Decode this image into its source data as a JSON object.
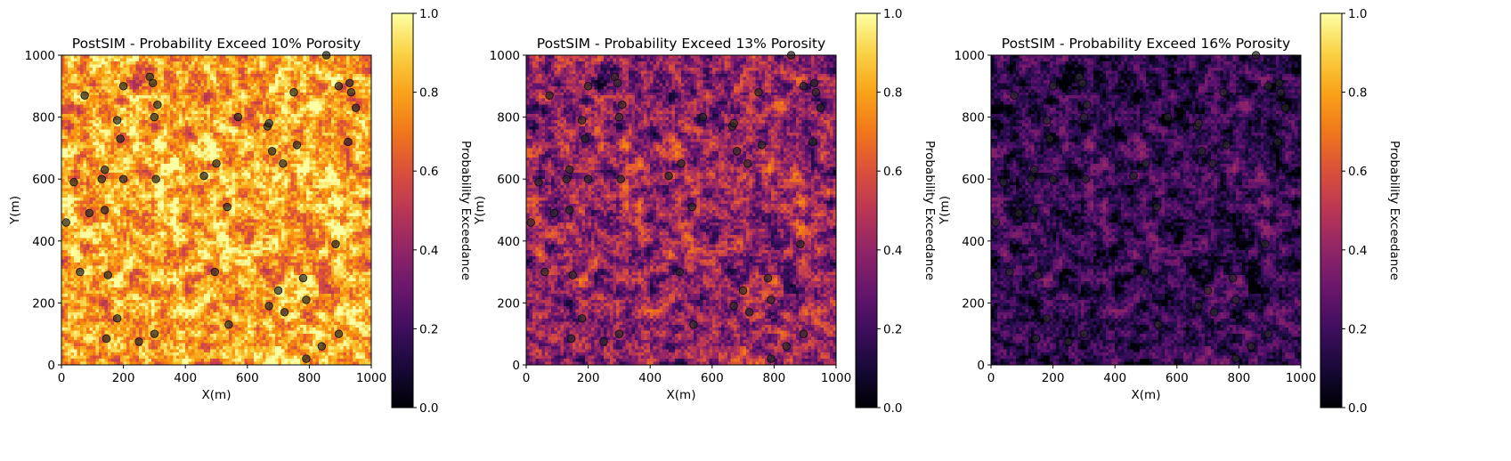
{
  "chart_data": [
    {
      "type": "heatmap",
      "title": "PostSIM - Probability Exceed 10% Porosity",
      "xlabel": "X(m)",
      "ylabel": "Y(m)",
      "xlim": [
        0,
        1000
      ],
      "ylim": [
        0,
        1000
      ],
      "xticks": [
        "0",
        "200",
        "400",
        "600",
        "800",
        "1000"
      ],
      "yticks": [
        "0",
        "200",
        "400",
        "600",
        "800",
        "1000"
      ],
      "grid_cells": 100,
      "mean_probability": 0.8,
      "variation": 0.19,
      "colorbar": {
        "label": "Probability Exceedance",
        "min": 0.0,
        "max": 1.0,
        "ticks": [
          "0.0",
          "0.2",
          "0.4",
          "0.6",
          "0.8",
          "1.0"
        ],
        "colormap": "inferno"
      },
      "wells": [
        [
          15,
          460
        ],
        [
          40,
          590
        ],
        [
          60,
          300
        ],
        [
          75,
          870
        ],
        [
          90,
          490
        ],
        [
          130,
          600
        ],
        [
          140,
          630
        ],
        [
          140,
          500
        ],
        [
          150,
          290
        ],
        [
          145,
          85
        ],
        [
          180,
          790
        ],
        [
          190,
          730
        ],
        [
          180,
          150
        ],
        [
          200,
          600
        ],
        [
          200,
          900
        ],
        [
          250,
          75
        ],
        [
          285,
          930
        ],
        [
          295,
          910
        ],
        [
          300,
          800
        ],
        [
          305,
          600
        ],
        [
          310,
          840
        ],
        [
          300,
          100
        ],
        [
          460,
          610
        ],
        [
          495,
          300
        ],
        [
          500,
          650
        ],
        [
          535,
          510
        ],
        [
          540,
          130
        ],
        [
          570,
          800
        ],
        [
          665,
          770
        ],
        [
          670,
          780
        ],
        [
          670,
          190
        ],
        [
          680,
          690
        ],
        [
          700,
          240
        ],
        [
          715,
          650
        ],
        [
          720,
          170
        ],
        [
          750,
          880
        ],
        [
          760,
          710
        ],
        [
          780,
          280
        ],
        [
          790,
          210
        ],
        [
          790,
          20
        ],
        [
          840,
          60
        ],
        [
          855,
          1000
        ],
        [
          885,
          390
        ],
        [
          895,
          100
        ],
        [
          895,
          900
        ],
        [
          925,
          720
        ],
        [
          930,
          910
        ],
        [
          935,
          880
        ],
        [
          950,
          830
        ]
      ]
    },
    {
      "type": "heatmap",
      "title": "PostSIM - Probability Exceed 13% Porosity",
      "xlabel": "X(m)",
      "ylabel": "Y(m)",
      "xlim": [
        0,
        1000
      ],
      "ylim": [
        0,
        1000
      ],
      "xticks": [
        "0",
        "200",
        "400",
        "600",
        "800",
        "1000"
      ],
      "yticks": [
        "0",
        "200",
        "400",
        "600",
        "800",
        "1000"
      ],
      "grid_cells": 100,
      "mean_probability": 0.4,
      "variation": 0.2,
      "colorbar": {
        "label": "Probability Exceedance",
        "min": 0.0,
        "max": 1.0,
        "ticks": [
          "0.0",
          "0.2",
          "0.4",
          "0.6",
          "0.8",
          "1.0"
        ],
        "colormap": "inferno"
      },
      "wells": [
        [
          15,
          460
        ],
        [
          40,
          590
        ],
        [
          60,
          300
        ],
        [
          75,
          870
        ],
        [
          90,
          490
        ],
        [
          130,
          600
        ],
        [
          140,
          630
        ],
        [
          140,
          500
        ],
        [
          150,
          290
        ],
        [
          145,
          85
        ],
        [
          180,
          790
        ],
        [
          190,
          730
        ],
        [
          180,
          150
        ],
        [
          200,
          600
        ],
        [
          200,
          900
        ],
        [
          250,
          75
        ],
        [
          285,
          930
        ],
        [
          295,
          910
        ],
        [
          300,
          800
        ],
        [
          305,
          600
        ],
        [
          310,
          840
        ],
        [
          300,
          100
        ],
        [
          460,
          610
        ],
        [
          495,
          300
        ],
        [
          500,
          650
        ],
        [
          535,
          510
        ],
        [
          540,
          130
        ],
        [
          570,
          800
        ],
        [
          665,
          770
        ],
        [
          670,
          780
        ],
        [
          670,
          190
        ],
        [
          680,
          690
        ],
        [
          700,
          240
        ],
        [
          715,
          650
        ],
        [
          720,
          170
        ],
        [
          750,
          880
        ],
        [
          760,
          710
        ],
        [
          780,
          280
        ],
        [
          790,
          210
        ],
        [
          790,
          20
        ],
        [
          840,
          60
        ],
        [
          855,
          1000
        ],
        [
          885,
          390
        ],
        [
          895,
          100
        ],
        [
          895,
          900
        ],
        [
          925,
          720
        ],
        [
          930,
          910
        ],
        [
          935,
          880
        ],
        [
          950,
          830
        ]
      ]
    },
    {
      "type": "heatmap",
      "title": "PostSIM - Probability Exceed 16% Porosity",
      "xlabel": "X(m)",
      "ylabel": "Y(m)",
      "xlim": [
        0,
        1000
      ],
      "ylim": [
        0,
        1000
      ],
      "xticks": [
        "0",
        "200",
        "400",
        "600",
        "800",
        "1000"
      ],
      "yticks": [
        "0",
        "200",
        "400",
        "600",
        "800",
        "1000"
      ],
      "grid_cells": 100,
      "mean_probability": 0.17,
      "variation": 0.15,
      "colorbar": {
        "label": "Probability Exceedance",
        "min": 0.0,
        "max": 1.0,
        "ticks": [
          "0.0",
          "0.2",
          "0.4",
          "0.6",
          "0.8",
          "1.0"
        ],
        "colormap": "inferno"
      },
      "wells": [
        [
          15,
          460
        ],
        [
          40,
          590
        ],
        [
          60,
          300
        ],
        [
          75,
          870
        ],
        [
          90,
          490
        ],
        [
          130,
          600
        ],
        [
          140,
          630
        ],
        [
          140,
          500
        ],
        [
          150,
          290
        ],
        [
          145,
          85
        ],
        [
          180,
          790
        ],
        [
          190,
          730
        ],
        [
          180,
          150
        ],
        [
          200,
          600
        ],
        [
          200,
          900
        ],
        [
          250,
          75
        ],
        [
          285,
          930
        ],
        [
          295,
          910
        ],
        [
          300,
          800
        ],
        [
          305,
          600
        ],
        [
          310,
          840
        ],
        [
          300,
          100
        ],
        [
          460,
          610
        ],
        [
          495,
          300
        ],
        [
          500,
          650
        ],
        [
          535,
          510
        ],
        [
          540,
          130
        ],
        [
          570,
          800
        ],
        [
          665,
          770
        ],
        [
          670,
          780
        ],
        [
          670,
          190
        ],
        [
          680,
          690
        ],
        [
          700,
          240
        ],
        [
          715,
          650
        ],
        [
          720,
          170
        ],
        [
          750,
          880
        ],
        [
          760,
          710
        ],
        [
          780,
          280
        ],
        [
          790,
          210
        ],
        [
          790,
          20
        ],
        [
          840,
          60
        ],
        [
          855,
          1000
        ],
        [
          885,
          390
        ],
        [
          895,
          100
        ],
        [
          895,
          900
        ],
        [
          925,
          720
        ],
        [
          930,
          910
        ],
        [
          935,
          880
        ],
        [
          950,
          830
        ]
      ]
    }
  ]
}
